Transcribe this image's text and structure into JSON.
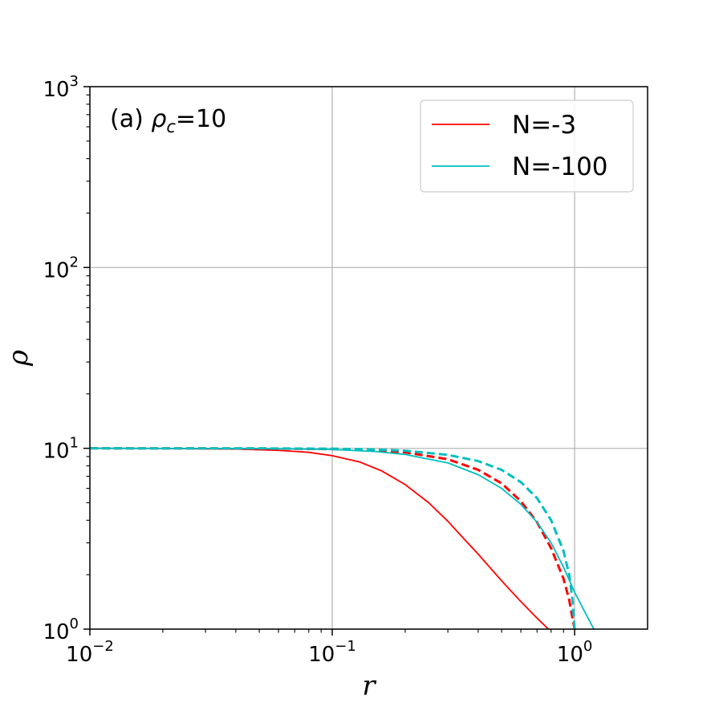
{
  "chart_data": {
    "type": "line",
    "annotation": {
      "prefix": "(a) ",
      "symbol": "ρ",
      "subscript": "c",
      "suffix": "=10"
    },
    "xlabel": "r",
    "ylabel": "ρ",
    "xscale": "log",
    "yscale": "log",
    "xlim": [
      0.01,
      2
    ],
    "ylim": [
      1,
      1000
    ],
    "grid": true,
    "legend_position": "top-right",
    "x_ticks": [
      {
        "value": 0.01,
        "base": "10",
        "exp": "−2"
      },
      {
        "value": 0.1,
        "base": "10",
        "exp": "−1"
      },
      {
        "value": 1,
        "base": "10",
        "exp": "0"
      }
    ],
    "y_ticks": [
      {
        "value": 1,
        "base": "10",
        "exp": "0"
      },
      {
        "value": 10,
        "base": "10",
        "exp": "1"
      },
      {
        "value": 100,
        "base": "10",
        "exp": "2"
      },
      {
        "value": 1000,
        "base": "10",
        "exp": "3"
      }
    ],
    "legend": [
      {
        "label": "N=-3",
        "color": "#ff0000"
      },
      {
        "label": "N=-100",
        "color": "#00bfbf"
      }
    ],
    "series": [
      {
        "name": "N=-3",
        "color": "#ff0000",
        "dash": false,
        "points": [
          [
            0.01,
            10
          ],
          [
            0.02,
            9.98
          ],
          [
            0.04,
            9.9
          ],
          [
            0.06,
            9.74
          ],
          [
            0.08,
            9.5
          ],
          [
            0.1,
            9.1
          ],
          [
            0.13,
            8.4
          ],
          [
            0.16,
            7.5
          ],
          [
            0.2,
            6.3
          ],
          [
            0.25,
            5.0
          ],
          [
            0.3,
            3.95
          ],
          [
            0.35,
            3.15
          ],
          [
            0.4,
            2.6
          ],
          [
            0.5,
            1.85
          ],
          [
            0.6,
            1.42
          ],
          [
            0.7,
            1.15
          ],
          [
            0.78,
            1.0
          ]
        ]
      },
      {
        "name": "N=-3",
        "color": "#ff0000",
        "dash": true,
        "points": [
          [
            0.01,
            10
          ],
          [
            0.05,
            9.98
          ],
          [
            0.1,
            9.9
          ],
          [
            0.15,
            9.75
          ],
          [
            0.2,
            9.5
          ],
          [
            0.3,
            8.7
          ],
          [
            0.4,
            7.6
          ],
          [
            0.5,
            6.4
          ],
          [
            0.6,
            5.1
          ],
          [
            0.7,
            3.9
          ],
          [
            0.8,
            2.8
          ],
          [
            0.9,
            1.9
          ],
          [
            0.95,
            1.45
          ],
          [
            0.98,
            1.15
          ],
          [
            1.0,
            1.0
          ]
        ]
      },
      {
        "name": "N=-100",
        "color": "#00bfbf",
        "dash": false,
        "points": [
          [
            0.01,
            10
          ],
          [
            0.05,
            9.97
          ],
          [
            0.1,
            9.85
          ],
          [
            0.15,
            9.6
          ],
          [
            0.2,
            9.25
          ],
          [
            0.3,
            8.3
          ],
          [
            0.4,
            7.15
          ],
          [
            0.5,
            6.0
          ],
          [
            0.6,
            4.9
          ],
          [
            0.7,
            3.9
          ],
          [
            0.8,
            3.0
          ],
          [
            0.9,
            2.2
          ],
          [
            1.0,
            1.6
          ],
          [
            1.1,
            1.25
          ],
          [
            1.2,
            1.0
          ]
        ]
      },
      {
        "name": "N=-100",
        "color": "#00bfbf",
        "dash": true,
        "points": [
          [
            0.01,
            10
          ],
          [
            0.05,
            9.99
          ],
          [
            0.1,
            9.95
          ],
          [
            0.15,
            9.85
          ],
          [
            0.2,
            9.7
          ],
          [
            0.3,
            9.2
          ],
          [
            0.4,
            8.5
          ],
          [
            0.5,
            7.6
          ],
          [
            0.6,
            6.5
          ],
          [
            0.7,
            5.3
          ],
          [
            0.8,
            4.0
          ],
          [
            0.9,
            2.7
          ],
          [
            0.95,
            2.0
          ],
          [
            0.98,
            1.45
          ],
          [
            1.0,
            1.0
          ]
        ]
      }
    ]
  }
}
